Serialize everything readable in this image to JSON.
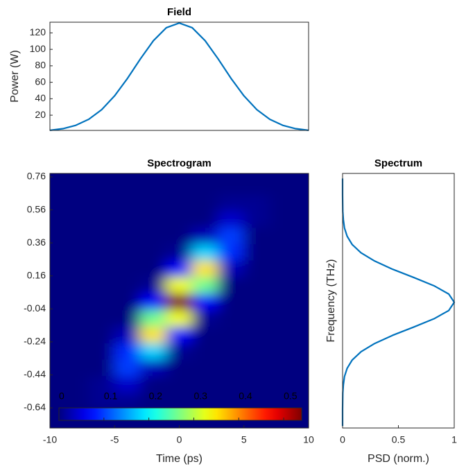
{
  "chart_data": [
    {
      "type": "line",
      "title": "Field",
      "y_label": "Power (W)",
      "x": [
        -10,
        -9,
        -8,
        -7,
        -6,
        -5,
        -4,
        -3,
        -2,
        -1,
        0,
        1,
        2,
        3,
        4,
        5,
        6,
        7,
        8,
        9,
        10
      ],
      "values": [
        1.6,
        3.6,
        7.7,
        15.0,
        26.7,
        43.5,
        64.8,
        88.5,
        110.5,
        126.3,
        132,
        126.3,
        110.5,
        88.5,
        64.8,
        43.5,
        26.7,
        15.0,
        7.7,
        3.6,
        1.6
      ],
      "xlim": [
        -10,
        10
      ],
      "ylim": [
        1.5,
        133
      ],
      "yticks": [
        20,
        40,
        60,
        80,
        100,
        120
      ],
      "color": "#0072bd"
    },
    {
      "type": "heatmap",
      "title": "Spectrogram",
      "x_label": "Time (ps)",
      "x": [
        -10,
        -8,
        -6,
        -4,
        -2,
        0,
        2,
        4,
        6,
        8,
        10
      ],
      "y": [
        0.7,
        0.6,
        0.5,
        0.4,
        0.3,
        0.2,
        0.1,
        0,
        -0.1,
        -0.2,
        -0.3,
        -0.4,
        -0.5,
        -0.6,
        -0.7
      ],
      "z": [
        [
          0,
          0,
          0,
          0,
          0,
          0,
          0,
          0,
          0,
          0,
          0
        ],
        [
          0,
          0,
          0,
          0,
          0,
          0,
          0,
          0.01,
          0.01,
          0,
          0
        ],
        [
          0,
          0,
          0,
          0,
          0,
          0,
          0,
          0.04,
          0.01,
          0,
          0
        ],
        [
          0,
          0,
          0,
          0,
          0,
          0,
          0.03,
          0.1,
          0,
          0,
          0
        ],
        [
          0,
          0,
          0,
          0,
          0,
          0.01,
          0.18,
          0.09,
          0,
          0,
          0
        ],
        [
          0,
          0,
          0,
          0,
          0,
          0.07,
          0.35,
          0.03,
          0,
          0,
          0
        ],
        [
          0,
          0,
          0,
          0,
          0.01,
          0.33,
          0.26,
          0,
          0,
          0,
          0
        ],
        [
          0,
          0,
          0,
          0,
          0.07,
          0.54,
          0.07,
          0,
          0,
          0,
          0
        ],
        [
          0,
          0,
          0,
          0,
          0.26,
          0.33,
          0.01,
          0,
          0,
          0,
          0
        ],
        [
          0,
          0,
          0,
          0.03,
          0.35,
          0.07,
          0,
          0,
          0,
          0,
          0
        ],
        [
          0,
          0,
          0,
          0.09,
          0.18,
          0.01,
          0,
          0,
          0,
          0,
          0
        ],
        [
          0,
          0,
          0,
          0.1,
          0.03,
          0,
          0,
          0,
          0,
          0,
          0
        ],
        [
          0,
          0,
          0.01,
          0.04,
          0,
          0,
          0,
          0,
          0,
          0,
          0
        ],
        [
          0,
          0,
          0.01,
          0.01,
          0,
          0,
          0,
          0,
          0,
          0,
          0
        ],
        [
          0,
          0,
          0,
          0,
          0,
          0,
          0,
          0,
          0,
          0,
          0
        ]
      ],
      "xlim": [
        -10,
        10
      ],
      "ylim": [
        -0.762,
        0.781
      ],
      "xticks": [
        -10,
        -5,
        0,
        5,
        10
      ],
      "yticks": [
        0.76,
        0.56,
        0.36,
        0.16,
        -0.04,
        -0.24,
        -0.44,
        -0.64
      ],
      "colormap": "jet",
      "clim": [
        0,
        0.54
      ],
      "colorbar_ticks": [
        0,
        0.1,
        0.2,
        0.3,
        0.4,
        0.5
      ]
    },
    {
      "type": "line",
      "orientation": "horizontal",
      "title": "Spectrum",
      "x_label": "PSD (norm.)",
      "y_label": "Frequency (THz)",
      "y": [
        -0.75,
        -0.7,
        -0.65,
        -0.6,
        -0.55,
        -0.5,
        -0.45,
        -0.4,
        -0.35,
        -0.3,
        -0.25,
        -0.2,
        -0.15,
        -0.1,
        -0.05,
        0,
        0.05,
        0.1,
        0.15,
        0.2,
        0.25,
        0.3,
        0.35,
        0.4,
        0.45,
        0.5,
        0.55,
        0.6,
        0.65,
        0.7,
        0.75
      ],
      "values": [
        0,
        0,
        0,
        0.001,
        0.002,
        0.007,
        0.017,
        0.041,
        0.086,
        0.165,
        0.287,
        0.449,
        0.638,
        0.819,
        0.951,
        1,
        0.951,
        0.819,
        0.638,
        0.449,
        0.287,
        0.165,
        0.086,
        0.041,
        0.017,
        0.007,
        0.002,
        0.001,
        0,
        0,
        0
      ],
      "xlim": [
        0,
        1
      ],
      "ylim": [
        -0.762,
        0.781
      ],
      "xticks": [
        0,
        0.5,
        1
      ],
      "color": "#0072bd"
    }
  ]
}
